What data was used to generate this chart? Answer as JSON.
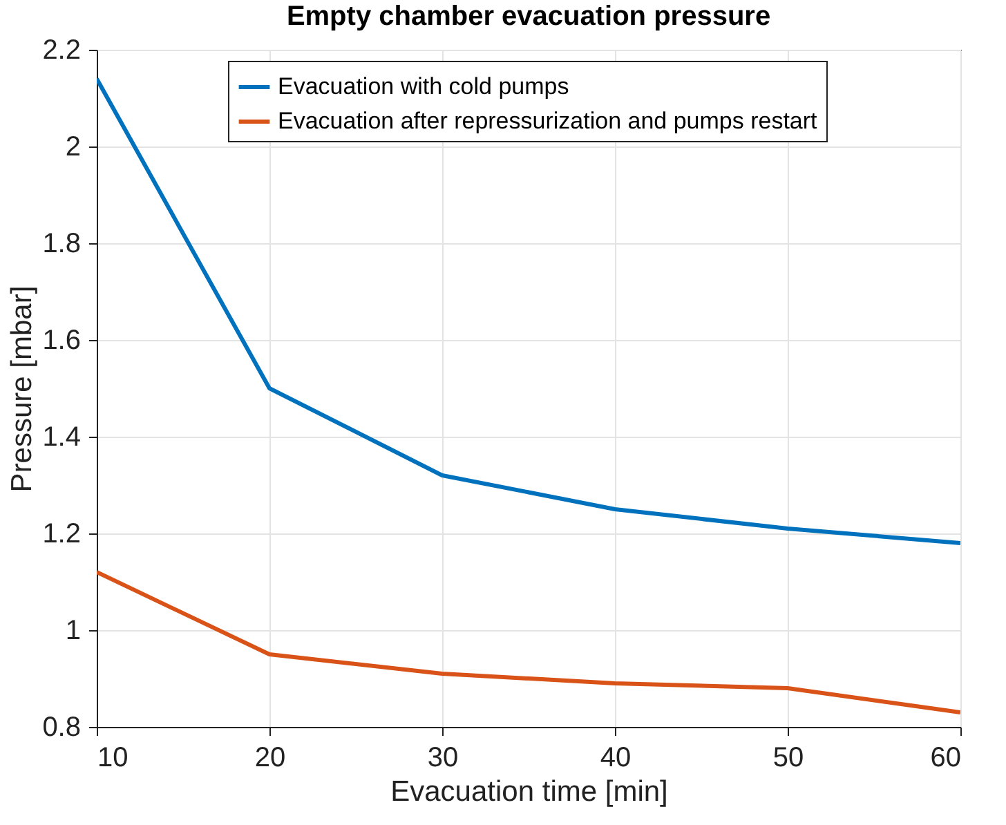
{
  "chart_data": {
    "type": "line",
    "title": "Empty chamber evacuation pressure",
    "xlabel": "Evacuation time [min]",
    "ylabel": "Pressure [mbar]",
    "x": [
      10,
      20,
      30,
      40,
      50,
      60
    ],
    "series": [
      {
        "name": "Evacuation with cold pumps",
        "color": "#0072bd",
        "values": [
          2.14,
          1.5,
          1.32,
          1.25,
          1.21,
          1.18
        ]
      },
      {
        "name": "Evacuation after repressurization and pumps restart",
        "color": "#d95319",
        "values": [
          1.12,
          0.95,
          0.91,
          0.89,
          0.88,
          0.83
        ]
      }
    ],
    "xlim": [
      10,
      60
    ],
    "xticks": [
      10,
      20,
      30,
      40,
      50,
      60
    ],
    "ylim": [
      0.8,
      2.2
    ],
    "yticks": [
      0.8,
      1,
      1.2,
      1.4,
      1.6,
      1.8,
      2,
      2.2
    ],
    "grid": true,
    "legend": "top",
    "marker": "none",
    "line_style": "solid"
  }
}
